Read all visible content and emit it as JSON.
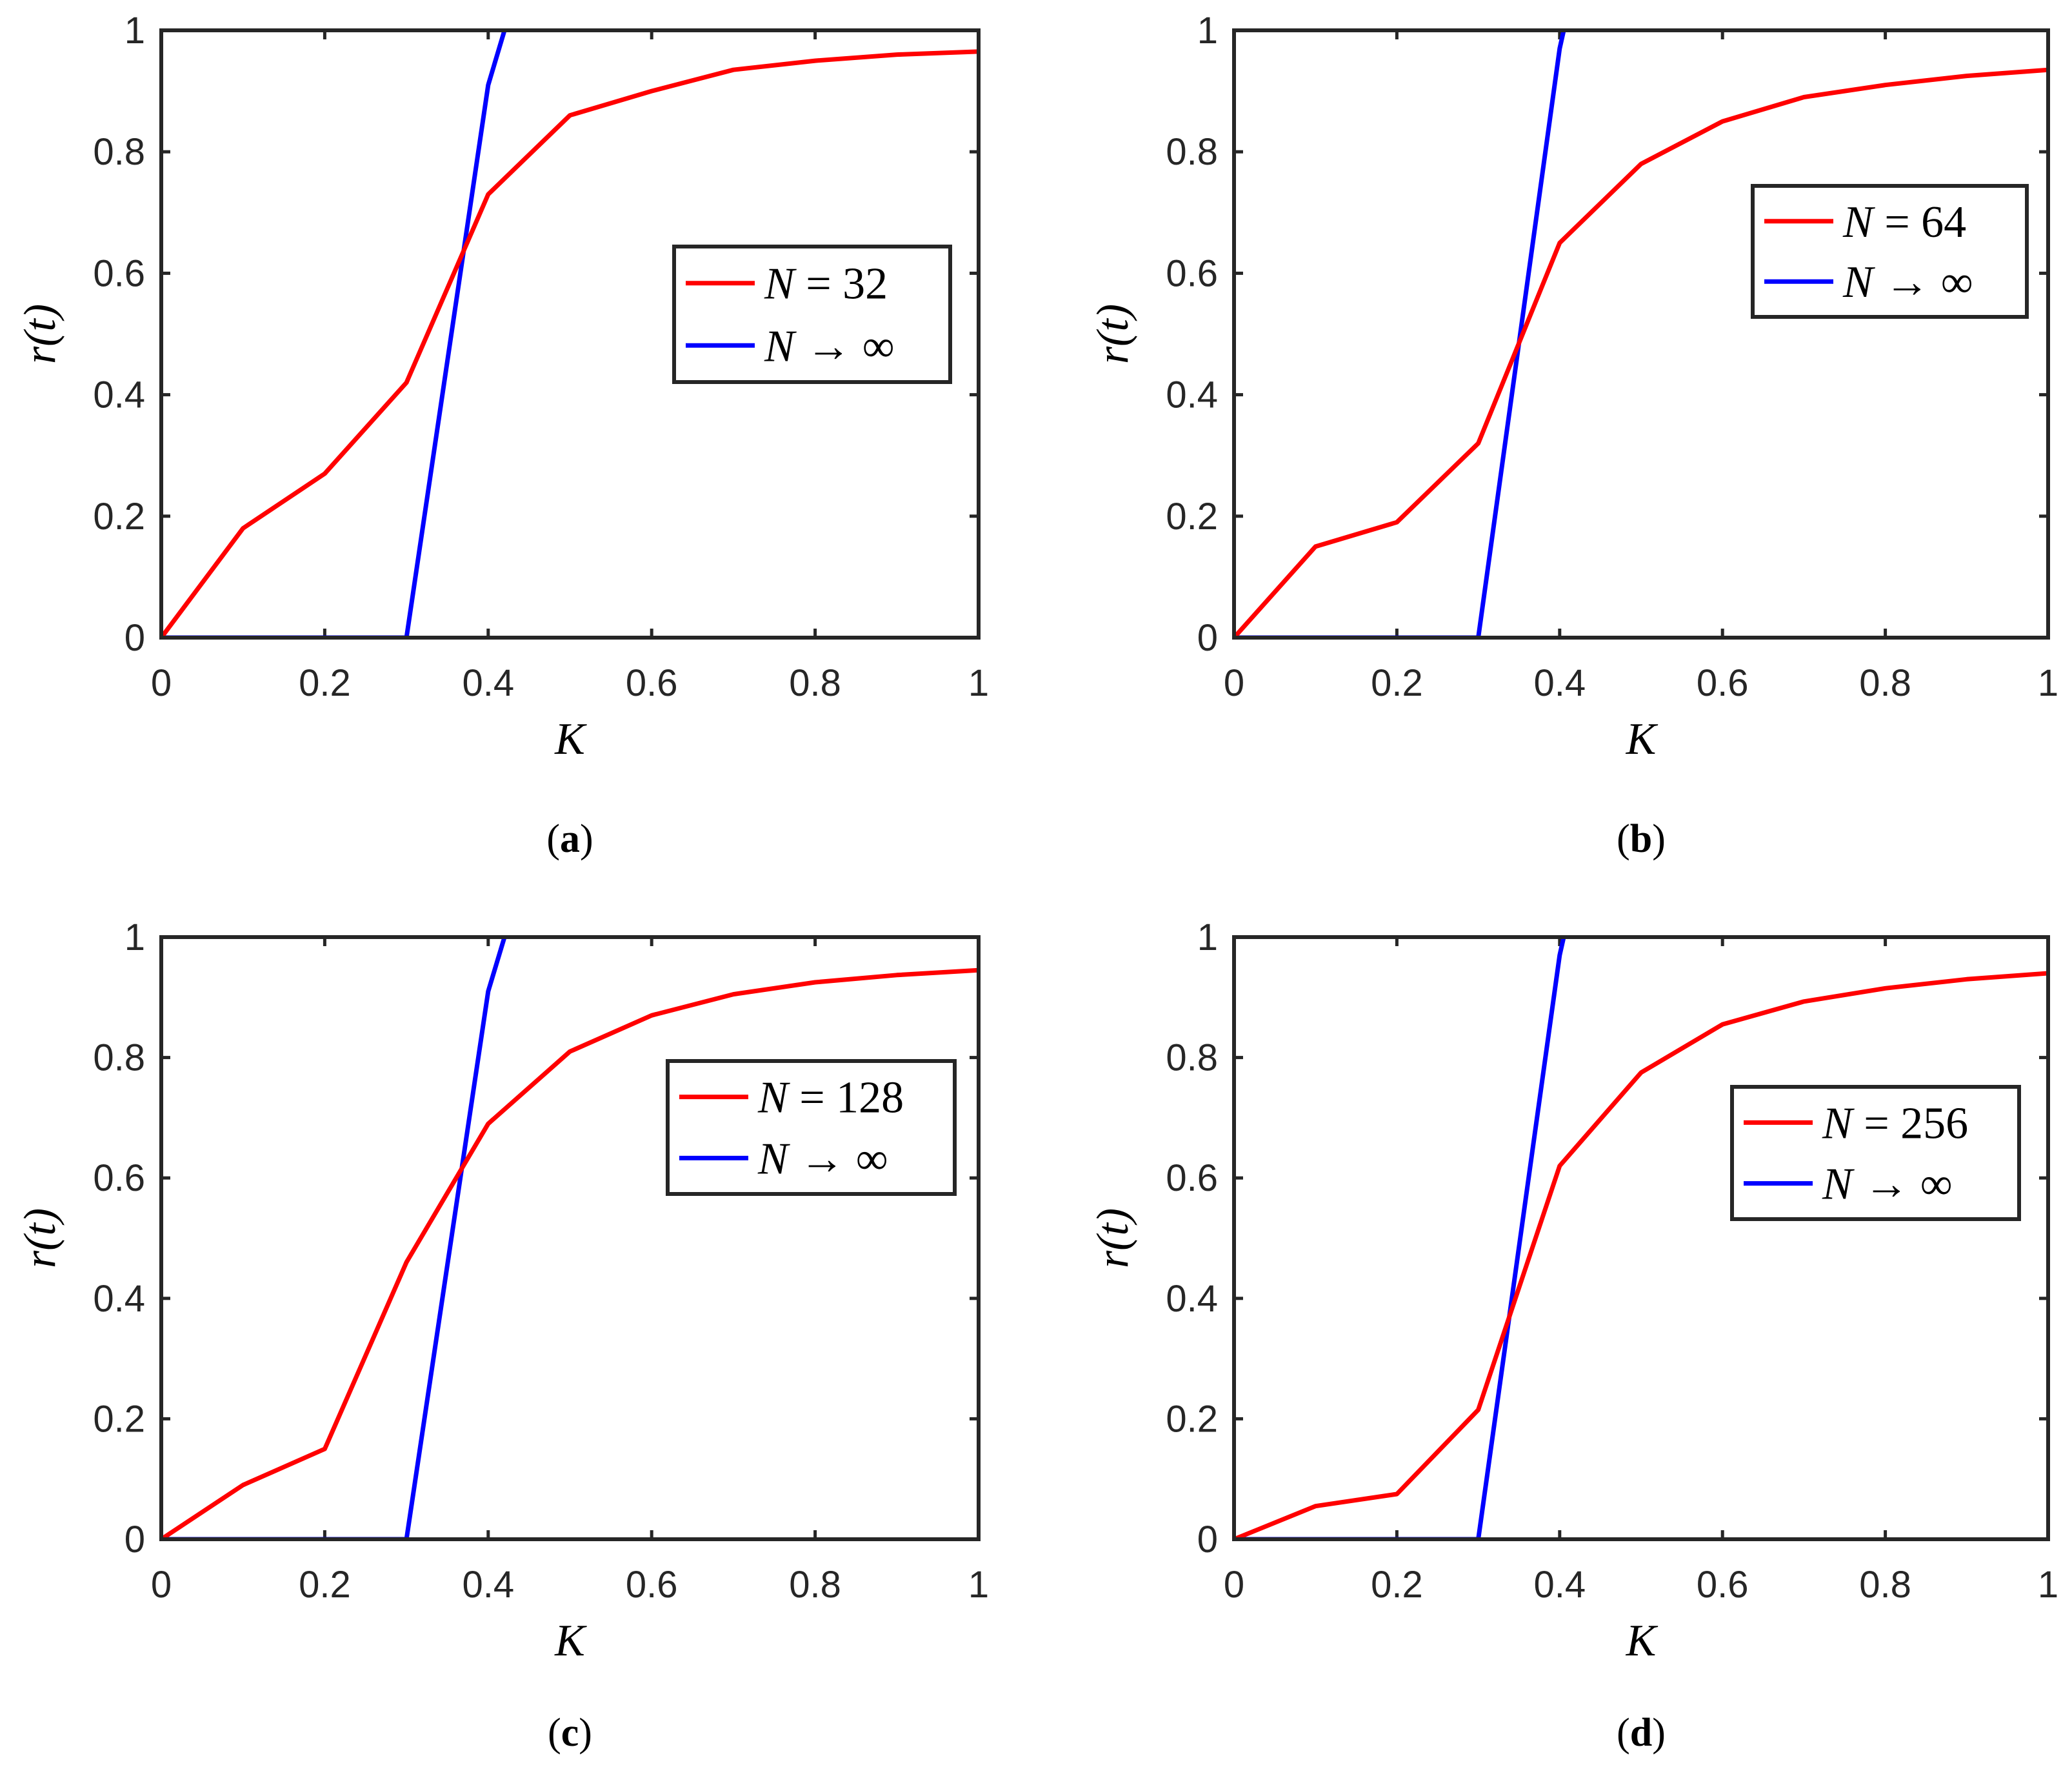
{
  "chart_data": [
    {
      "type": "line",
      "panel": "a",
      "caption_letter": "a",
      "xlabel": "K",
      "ylabel": "r(t)",
      "xlim": [
        0,
        1
      ],
      "ylim": [
        0,
        1
      ],
      "xticks": [
        0,
        0.2,
        0.4,
        0.6,
        0.8,
        1
      ],
      "xtick_labels": [
        "0",
        "0.2",
        "0.4",
        "0.6",
        "0.8",
        "1"
      ],
      "yticks": [
        0,
        0.2,
        0.4,
        0.6,
        0.8,
        1
      ],
      "ytick_labels": [
        "0",
        "0.2",
        "0.4",
        "0.6",
        "0.8",
        "1"
      ],
      "legend_position": "right-center",
      "series": [
        {
          "name": "N = 32",
          "legend_var": "N",
          "legend_rest": " = 32",
          "color": "#ff0000",
          "x": [
            0,
            0.1,
            0.2,
            0.3,
            0.4,
            0.5,
            0.6,
            0.7,
            0.8,
            0.9,
            1.0
          ],
          "y": [
            0,
            0.18,
            0.27,
            0.42,
            0.73,
            0.86,
            0.9,
            0.935,
            0.95,
            0.96,
            0.965
          ]
        },
        {
          "name": "N → ∞",
          "legend_var": "N",
          "legend_rest": " → ∞",
          "color": "#0000ff",
          "x": [
            0,
            0.1,
            0.2,
            0.3,
            0.4,
            0.42
          ],
          "y": [
            0,
            0,
            0,
            0,
            0.91,
            1.0
          ]
        }
      ]
    },
    {
      "type": "line",
      "panel": "b",
      "caption_letter": "b",
      "xlabel": "K",
      "ylabel": "r(t)",
      "xlim": [
        0,
        1
      ],
      "ylim": [
        0,
        1
      ],
      "xticks": [
        0,
        0.2,
        0.4,
        0.6,
        0.8,
        1
      ],
      "xtick_labels": [
        "0",
        "0.2",
        "0.4",
        "0.6",
        "0.8",
        "1"
      ],
      "yticks": [
        0,
        0.2,
        0.4,
        0.6,
        0.8,
        1
      ],
      "ytick_labels": [
        "0",
        "0.2",
        "0.4",
        "0.6",
        "0.8",
        "1"
      ],
      "legend_position": "top-right",
      "series": [
        {
          "name": "N = 64",
          "legend_var": "N",
          "legend_rest": " = 64",
          "color": "#ff0000",
          "x": [
            0,
            0.1,
            0.2,
            0.3,
            0.4,
            0.5,
            0.6,
            0.7,
            0.8,
            0.9,
            1.0
          ],
          "y": [
            0,
            0.15,
            0.19,
            0.32,
            0.65,
            0.78,
            0.85,
            0.89,
            0.91,
            0.925,
            0.935
          ]
        },
        {
          "name": "N → ∞",
          "legend_var": "N",
          "legend_rest": " → ∞",
          "color": "#0000ff",
          "x": [
            0,
            0.1,
            0.2,
            0.3,
            0.4,
            0.405
          ],
          "y": [
            0,
            0,
            0,
            0,
            0.97,
            1.0
          ]
        }
      ]
    },
    {
      "type": "line",
      "panel": "c",
      "caption_letter": "c",
      "xlabel": "K",
      "ylabel": "r(t)",
      "xlim": [
        0,
        1
      ],
      "ylim": [
        0,
        1
      ],
      "xticks": [
        0,
        0.2,
        0.4,
        0.6,
        0.8,
        1
      ],
      "xtick_labels": [
        "0",
        "0.2",
        "0.4",
        "0.6",
        "0.8",
        "1"
      ],
      "yticks": [
        0,
        0.2,
        0.4,
        0.6,
        0.8,
        1
      ],
      "ytick_labels": [
        "0",
        "0.2",
        "0.4",
        "0.6",
        "0.8",
        "1"
      ],
      "legend_position": "right-center",
      "series": [
        {
          "name": "N = 128",
          "legend_var": "N",
          "legend_rest": " = 128",
          "color": "#ff0000",
          "x": [
            0,
            0.1,
            0.2,
            0.3,
            0.4,
            0.5,
            0.6,
            0.7,
            0.8,
            0.9,
            1.0
          ],
          "y": [
            0,
            0.09,
            0.15,
            0.46,
            0.69,
            0.81,
            0.87,
            0.905,
            0.925,
            0.937,
            0.945
          ]
        },
        {
          "name": "N → ∞",
          "legend_var": "N",
          "legend_rest": " → ∞",
          "color": "#0000ff",
          "x": [
            0,
            0.1,
            0.2,
            0.3,
            0.4,
            0.42
          ],
          "y": [
            0,
            0,
            0,
            0,
            0.91,
            1.0
          ]
        }
      ]
    },
    {
      "type": "line",
      "panel": "d",
      "caption_letter": "d",
      "xlabel": "K",
      "ylabel": "r(t)",
      "xlim": [
        0,
        1
      ],
      "ylim": [
        0,
        1
      ],
      "xticks": [
        0,
        0.2,
        0.4,
        0.6,
        0.8,
        1
      ],
      "xtick_labels": [
        "0",
        "0.2",
        "0.4",
        "0.6",
        "0.8",
        "1"
      ],
      "yticks": [
        0,
        0.2,
        0.4,
        0.6,
        0.8,
        1
      ],
      "ytick_labels": [
        "0",
        "0.2",
        "0.4",
        "0.6",
        "0.8",
        "1"
      ],
      "legend_position": "right-center",
      "series": [
        {
          "name": "N = 256",
          "legend_var": "N",
          "legend_rest": " = 256",
          "color": "#ff0000",
          "x": [
            0,
            0.1,
            0.2,
            0.3,
            0.4,
            0.5,
            0.6,
            0.7,
            0.8,
            0.9,
            1.0
          ],
          "y": [
            0,
            0.055,
            0.075,
            0.215,
            0.62,
            0.775,
            0.855,
            0.893,
            0.915,
            0.93,
            0.94
          ]
        },
        {
          "name": "N → ∞",
          "legend_var": "N",
          "legend_rest": " → ∞",
          "color": "#0000ff",
          "x": [
            0,
            0.1,
            0.2,
            0.3,
            0.4,
            0.405
          ],
          "y": [
            0,
            0,
            0,
            0,
            0.97,
            1.0
          ]
        }
      ]
    }
  ]
}
